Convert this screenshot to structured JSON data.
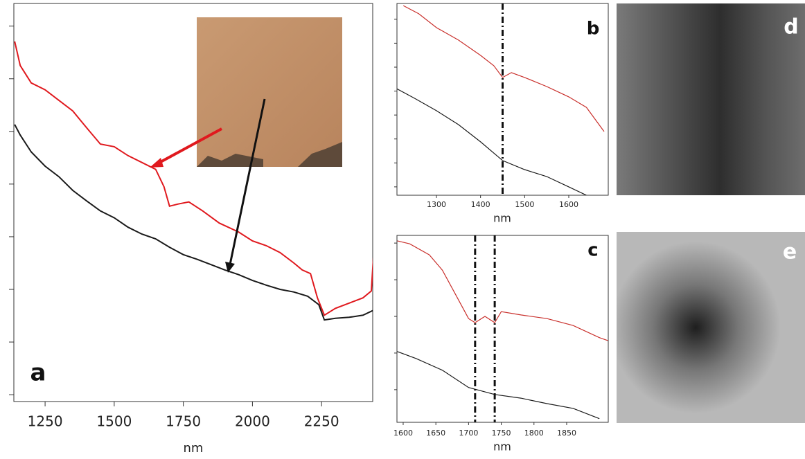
{
  "chart_data": [
    {
      "type": "line",
      "label": "a",
      "x_label": "nm",
      "xlim": [
        1137,
        2435
      ],
      "xticks": [
        1250,
        1500,
        1750,
        2000,
        2250
      ],
      "ylim": [
        -0.13,
        7.43
      ],
      "yticks": [
        0,
        1,
        2,
        3,
        4,
        5,
        6,
        7
      ],
      "series": [
        {
          "color": "#e0191e",
          "x": [
            1140,
            1160,
            1200,
            1250,
            1300,
            1350,
            1400,
            1450,
            1500,
            1550,
            1600,
            1650,
            1680,
            1700,
            1730,
            1770,
            1820,
            1880,
            1950,
            2000,
            2050,
            2100,
            2150,
            2180,
            2210,
            2235,
            2260,
            2300,
            2350,
            2400,
            2430,
            2440,
            2445
          ],
          "values": [
            6.71,
            6.25,
            5.92,
            5.79,
            5.59,
            5.39,
            5.07,
            4.76,
            4.71,
            4.54,
            4.41,
            4.28,
            3.95,
            3.58,
            3.62,
            3.66,
            3.49,
            3.26,
            3.09,
            2.92,
            2.83,
            2.7,
            2.5,
            2.37,
            2.3,
            1.84,
            1.51,
            1.64,
            1.74,
            1.84,
            1.97,
            2.83,
            1.45
          ]
        },
        {
          "color": "#1a1a1a",
          "x": [
            1140,
            1160,
            1200,
            1250,
            1300,
            1350,
            1400,
            1450,
            1500,
            1550,
            1600,
            1650,
            1700,
            1750,
            1800,
            1850,
            1900,
            1950,
            2000,
            2050,
            2100,
            2150,
            2200,
            2240,
            2260,
            2300,
            2350,
            2400,
            2440,
            2445
          ],
          "values": [
            5.13,
            4.93,
            4.61,
            4.34,
            4.14,
            3.88,
            3.68,
            3.49,
            3.36,
            3.18,
            3.05,
            2.96,
            2.8,
            2.66,
            2.57,
            2.47,
            2.37,
            2.28,
            2.17,
            2.08,
            2.0,
            1.95,
            1.87,
            1.71,
            1.42,
            1.45,
            1.47,
            1.51,
            1.61,
            1.34
          ]
        }
      ]
    },
    {
      "type": "line",
      "label": "b",
      "x_label": "nm",
      "xlim": [
        1210.5,
        1689.5
      ],
      "xticks": [
        1300,
        1400,
        1500,
        1600
      ],
      "ylim": [
        -0.35,
        7.66
      ],
      "yticks": [
        0,
        1,
        2,
        3,
        4,
        5,
        6,
        7
      ],
      "vlines": [
        1450
      ],
      "series": [
        {
          "color": "#c9302c",
          "x": [
            1225,
            1260,
            1300,
            1350,
            1400,
            1430,
            1450,
            1470,
            1500,
            1550,
            1600,
            1640,
            1680
          ],
          "values": [
            7.57,
            7.23,
            6.65,
            6.13,
            5.49,
            5.06,
            4.57,
            4.77,
            4.57,
            4.19,
            3.76,
            3.32,
            2.31
          ]
        },
        {
          "color": "#1a1a1a",
          "x": [
            1210,
            1250,
            1300,
            1350,
            1400,
            1450,
            1500,
            1550,
            1600,
            1640
          ],
          "values": [
            4.1,
            3.7,
            3.18,
            2.6,
            1.88,
            1.1,
            0.72,
            0.43,
            0,
            -0.35
          ]
        }
      ]
    },
    {
      "type": "line",
      "label": "c",
      "x_label": "nm",
      "xlim": [
        1590.5,
        1913.6
      ],
      "xticks": [
        1600,
        1650,
        1700,
        1750,
        1800,
        1850
      ],
      "ylim": [
        -0.89,
        4.21
      ],
      "yticks": [
        0,
        1,
        2,
        3,
        4
      ],
      "vlines": [
        1710,
        1740
      ],
      "series": [
        {
          "color": "#c9302c",
          "x": [
            1591,
            1610,
            1640,
            1660,
            1680,
            1700,
            1710,
            1725,
            1740,
            1750,
            1780,
            1820,
            1860,
            1900,
            1913
          ],
          "values": [
            4.06,
            3.98,
            3.68,
            3.26,
            2.6,
            1.94,
            1.83,
            2.0,
            1.83,
            2.13,
            2.04,
            1.94,
            1.75,
            1.42,
            1.34
          ]
        },
        {
          "color": "#1a1a1a",
          "x": [
            1591,
            1620,
            1660,
            1700,
            1740,
            1780,
            1820,
            1860,
            1900
          ],
          "values": [
            1.04,
            0.85,
            0.53,
            0.06,
            -0.13,
            -0.23,
            -0.38,
            -0.51,
            -0.79
          ]
        }
      ]
    }
  ],
  "image_panels": [
    {
      "label": "d"
    },
    {
      "label": "e"
    }
  ]
}
